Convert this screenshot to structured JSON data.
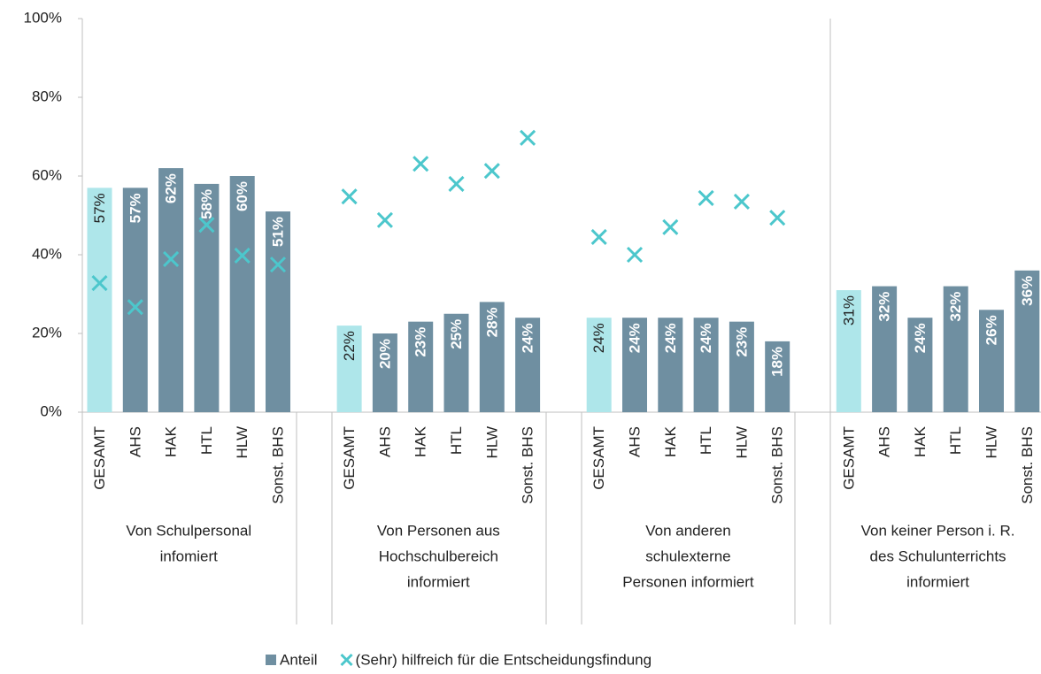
{
  "chart_data": {
    "type": "bar",
    "categories": [
      "GESAMT",
      "AHS",
      "HAK",
      "HTL",
      "HLW",
      "Sonst. BHS",
      null,
      "GESAMT",
      "AHS",
      "HAK",
      "HTL",
      "HLW",
      "Sonst. BHS",
      null,
      "GESAMT",
      "AHS",
      "HAK",
      "HTL",
      "HLW",
      "Sonst. BHS",
      null,
      "GESAMT",
      "AHS",
      "HAK",
      "HTL",
      "HLW",
      "Sonst. BHS"
    ],
    "groups": [
      {
        "label_lines": [
          "Von Schulpersonal",
          "infomiert"
        ]
      },
      {
        "label_lines": [
          "Von Personen aus",
          "Hochschulbereich",
          "informiert"
        ]
      },
      {
        "label_lines": [
          "Von anderen",
          "schulexterne",
          "Personen informiert"
        ]
      },
      {
        "label_lines": [
          "Von keiner Person i. R.",
          "des Schulunterrichts",
          "informiert"
        ]
      }
    ],
    "highlight_category": "GESAMT",
    "highlight_color": "#aee6ea",
    "series": [
      {
        "name": "Anteil",
        "type": "bar",
        "color": "#6f8fa1",
        "values": [
          57,
          57,
          62,
          58,
          60,
          51,
          null,
          22,
          20,
          23,
          25,
          28,
          24,
          null,
          24,
          24,
          24,
          24,
          23,
          18,
          null,
          31,
          32,
          24,
          32,
          26,
          36
        ],
        "value_labels": [
          "57%",
          "57%",
          "62%",
          "58%",
          "60%",
          "51%",
          null,
          "22%",
          "20%",
          "23%",
          "25%",
          "28%",
          "24%",
          null,
          "24%",
          "24%",
          "24%",
          "24%",
          "23%",
          "18%",
          null,
          "31%",
          "32%",
          "24%",
          "32%",
          "26%",
          "36%"
        ]
      },
      {
        "name": "(Sehr) hilfreich für die Entscheidungsfindung",
        "type": "scatter",
        "color": "#4cc7cc",
        "values": [
          32.8,
          26.7,
          38.9,
          47.6,
          39.8,
          37.5,
          null,
          54.8,
          48.8,
          63.1,
          58,
          61.3,
          69.7,
          null,
          44.5,
          40,
          47,
          54.4,
          53.5,
          49.4,
          null,
          null,
          null,
          null,
          null,
          null,
          null
        ]
      }
    ],
    "ylim": [
      0,
      100
    ],
    "yticks": [
      {
        "value": 0,
        "label": "0%"
      },
      {
        "value": 20,
        "label": "20%"
      },
      {
        "value": 40,
        "label": "40%"
      },
      {
        "value": 60,
        "label": "60%"
      },
      {
        "value": 80,
        "label": "80%"
      },
      {
        "value": 100,
        "label": "100%"
      }
    ]
  }
}
